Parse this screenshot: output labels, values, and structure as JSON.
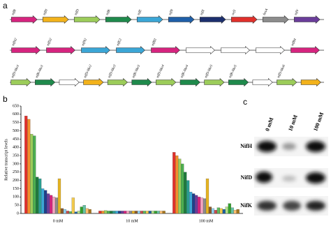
{
  "panels": {
    "a": "a",
    "b": "b",
    "c": "c"
  },
  "gene_rows": [
    [
      {
        "label": "nifB",
        "color": "#d6247f"
      },
      {
        "label": "nifH",
        "color": "#f2b21b"
      },
      {
        "label": "nifD",
        "color": "#9ccc5a"
      },
      {
        "label": "nifK",
        "color": "#1f8a4c"
      },
      {
        "label": "nifE",
        "color": "#3ba6d6"
      },
      {
        "label": "nifN",
        "color": "#1f5fa8"
      },
      {
        "label": "nifX",
        "color": "#1c2f6e"
      },
      {
        "label": "orf1",
        "color": "#e0302b"
      },
      {
        "label": "hesA",
        "color": "#8c8c8c"
      },
      {
        "label": "nifV",
        "color": "#6a3d9a"
      }
    ],
    [
      {
        "label": "nifH2",
        "color": "#d6247f"
      },
      {
        "label": "nifD2",
        "color": "#d6247f"
      },
      {
        "label": "nifN2",
        "color": "#3ba6d6"
      },
      {
        "label": "nifE2",
        "color": "#3ba6d6"
      },
      {
        "label": "nifB3",
        "color": "#d6247f"
      },
      {
        "label": null,
        "color": "#ffffff"
      },
      {
        "label": null,
        "color": "#ffffff"
      },
      {
        "label": null,
        "color": "#ffffff"
      },
      {
        "label": "nifB4",
        "color": "#d6247f"
      }
    ],
    [
      {
        "label": "nifD-like1",
        "color": "#9ccc5a"
      },
      {
        "label": "nifK-like1",
        "color": "#1f8a4c"
      },
      {
        "label": null,
        "color": "#ffffff"
      },
      {
        "label": "nifD-like2",
        "color": "#f2b21b"
      },
      {
        "label": "nifD-like3",
        "color": "#9ccc5a"
      },
      {
        "label": "nifK-like3",
        "color": "#1f8a4c"
      },
      {
        "label": "nifD-like4",
        "color": "#9ccc5a"
      },
      {
        "label": "nifK-like4",
        "color": "#1f8a4c"
      },
      {
        "label": "nifD-like5",
        "color": "#9ccc5a"
      },
      {
        "label": "nifK-like5",
        "color": "#1f8a4c"
      },
      {
        "label": null,
        "color": "#ffffff"
      },
      {
        "label": "nifD-like6",
        "color": "#9ccc5a"
      },
      {
        "label": null,
        "color": "#f2b21b"
      }
    ]
  ],
  "chart_data": {
    "type": "bar",
    "ylabel": "Relative transcript levels",
    "categories": [
      "0 mM",
      "10 mM",
      "100 mM"
    ],
    "ylim": [
      0,
      650
    ],
    "yticks": [
      0,
      50,
      100,
      150,
      200,
      250,
      300,
      350,
      400,
      450,
      500,
      550,
      600,
      650
    ],
    "series": [
      {
        "color": "#e0302b",
        "values": [
          590,
          15,
          370
        ]
      },
      {
        "color": "#f28e2b",
        "values": [
          570,
          15,
          350
        ]
      },
      {
        "color": "#9ccc5a",
        "values": [
          480,
          18,
          330
        ]
      },
      {
        "color": "#4caf50",
        "values": [
          470,
          15,
          300
        ]
      },
      {
        "color": "#1f7a3c",
        "values": [
          220,
          15,
          250
        ]
      },
      {
        "color": "#2a9d8f",
        "values": [
          210,
          15,
          200
        ]
      },
      {
        "color": "#3ba6d6",
        "values": [
          150,
          15,
          130
        ]
      },
      {
        "color": "#1f3f8a",
        "values": [
          140,
          15,
          120
        ]
      },
      {
        "color": "#6a3d9a",
        "values": [
          120,
          15,
          110
        ]
      },
      {
        "color": "#d6247f",
        "values": [
          110,
          15,
          100
        ]
      },
      {
        "color": "#f4a6c0",
        "values": [
          100,
          15,
          95
        ]
      },
      {
        "color": "#8c8c8c",
        "values": [
          95,
          15,
          90
        ]
      },
      {
        "color": "#e6b422",
        "values": [
          210,
          15,
          210
        ]
      },
      {
        "color": "#8b5a2b",
        "values": [
          30,
          15,
          40
        ]
      },
      {
        "color": "#8fd0f0",
        "values": [
          25,
          15,
          30
        ]
      },
      {
        "color": "#c94c4c",
        "values": [
          15,
          15,
          20
        ]
      },
      {
        "color": "#5cb85c",
        "values": [
          12,
          15,
          35
        ]
      },
      {
        "color": "#f2c94c",
        "values": [
          95,
          15,
          30
        ]
      },
      {
        "color": "#1a5fa0",
        "values": [
          10,
          15,
          25
        ]
      },
      {
        "color": "#b2df8a",
        "values": [
          15,
          15,
          40
        ]
      },
      {
        "color": "#33a02c",
        "values": [
          40,
          15,
          60
        ]
      },
      {
        "color": "#66c2a5",
        "values": [
          50,
          15,
          35
        ]
      },
      {
        "color": "#fdbf6f",
        "values": [
          30,
          15,
          20
        ]
      },
      {
        "color": "#a6761d",
        "values": [
          25,
          15,
          25
        ]
      }
    ]
  },
  "blot": {
    "columns": [
      "0 mM",
      "10 mM",
      "100 mM"
    ],
    "rows": [
      "NifH",
      "NifD",
      "NifK"
    ]
  }
}
